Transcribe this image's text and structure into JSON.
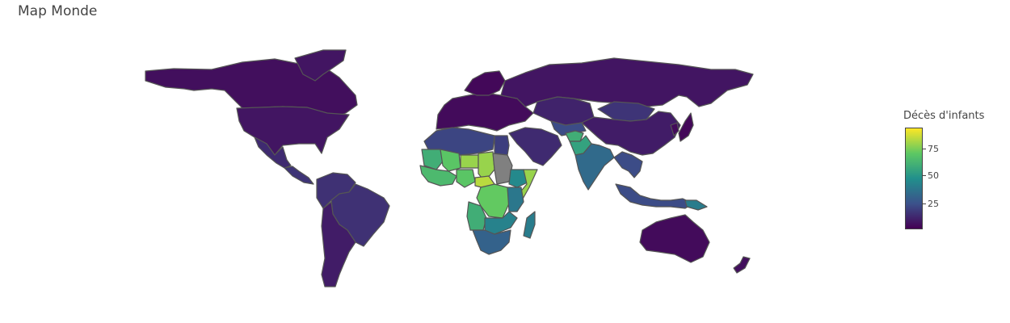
{
  "title": "Map Monde",
  "colorbar": {
    "title": "Décès d'infants",
    "ticks": [
      "75",
      "50",
      "25"
    ],
    "colorscale": [
      "#440154",
      "#3b528b",
      "#21908c",
      "#5dc863",
      "#fde725"
    ],
    "range": [
      0,
      95
    ]
  },
  "colors": {
    "no_data": "#808080",
    "border": "#555555"
  },
  "map": {
    "projection": "equirectangular",
    "regions": [
      {
        "name": "Canada",
        "value": 4
      },
      {
        "name": "Greenland",
        "value": 6
      },
      {
        "name": "USA",
        "value": 6
      },
      {
        "name": "Mexico",
        "value": 12
      },
      {
        "name": "Central America",
        "value": 15
      },
      {
        "name": "South America",
        "value": 14
      },
      {
        "name": "Brazil",
        "value": 14
      },
      {
        "name": "Southern Cone",
        "value": 8
      },
      {
        "name": "Europe",
        "value": 3
      },
      {
        "name": "Scandinavia",
        "value": 2
      },
      {
        "name": "Russia",
        "value": 6
      },
      {
        "name": "Kazakhstan",
        "value": 10
      },
      {
        "name": "Mongolia",
        "value": 15
      },
      {
        "name": "China",
        "value": 8
      },
      {
        "name": "Middle East",
        "value": 12
      },
      {
        "name": "Central Asia",
        "value": 22
      },
      {
        "name": "Afghanistan",
        "value": 60
      },
      {
        "name": "Pakistan",
        "value": 55
      },
      {
        "name": "India",
        "value": 33
      },
      {
        "name": "Southeast Asia",
        "value": 22
      },
      {
        "name": "Indonesia",
        "value": 22
      },
      {
        "name": "Japan",
        "value": 2
      },
      {
        "name": "Korea",
        "value": 3
      },
      {
        "name": "North Africa",
        "value": 20
      },
      {
        "name": "Egypt",
        "value": 18
      },
      {
        "name": "Mauritania",
        "value": 60
      },
      {
        "name": "Mali",
        "value": 70
      },
      {
        "name": "Niger",
        "value": 80
      },
      {
        "name": "Chad",
        "value": 80
      },
      {
        "name": "Sudan",
        "value": null
      },
      {
        "name": "Ethiopia",
        "value": 45
      },
      {
        "name": "Somalia",
        "value": 80
      },
      {
        "name": "West Africa",
        "value": 65
      },
      {
        "name": "Nigeria",
        "value": 70
      },
      {
        "name": "Central African Republic",
        "value": 85
      },
      {
        "name": "DR Congo",
        "value": 72
      },
      {
        "name": "Angola",
        "value": 60
      },
      {
        "name": "East Africa",
        "value": 38
      },
      {
        "name": "Zambia",
        "value": 42
      },
      {
        "name": "Southern Africa",
        "value": 30
      },
      {
        "name": "Madagascar",
        "value": 40
      },
      {
        "name": "Australia",
        "value": 3
      },
      {
        "name": "New Zealand",
        "value": 4
      },
      {
        "name": "Papua New Guinea",
        "value": 40
      }
    ]
  }
}
